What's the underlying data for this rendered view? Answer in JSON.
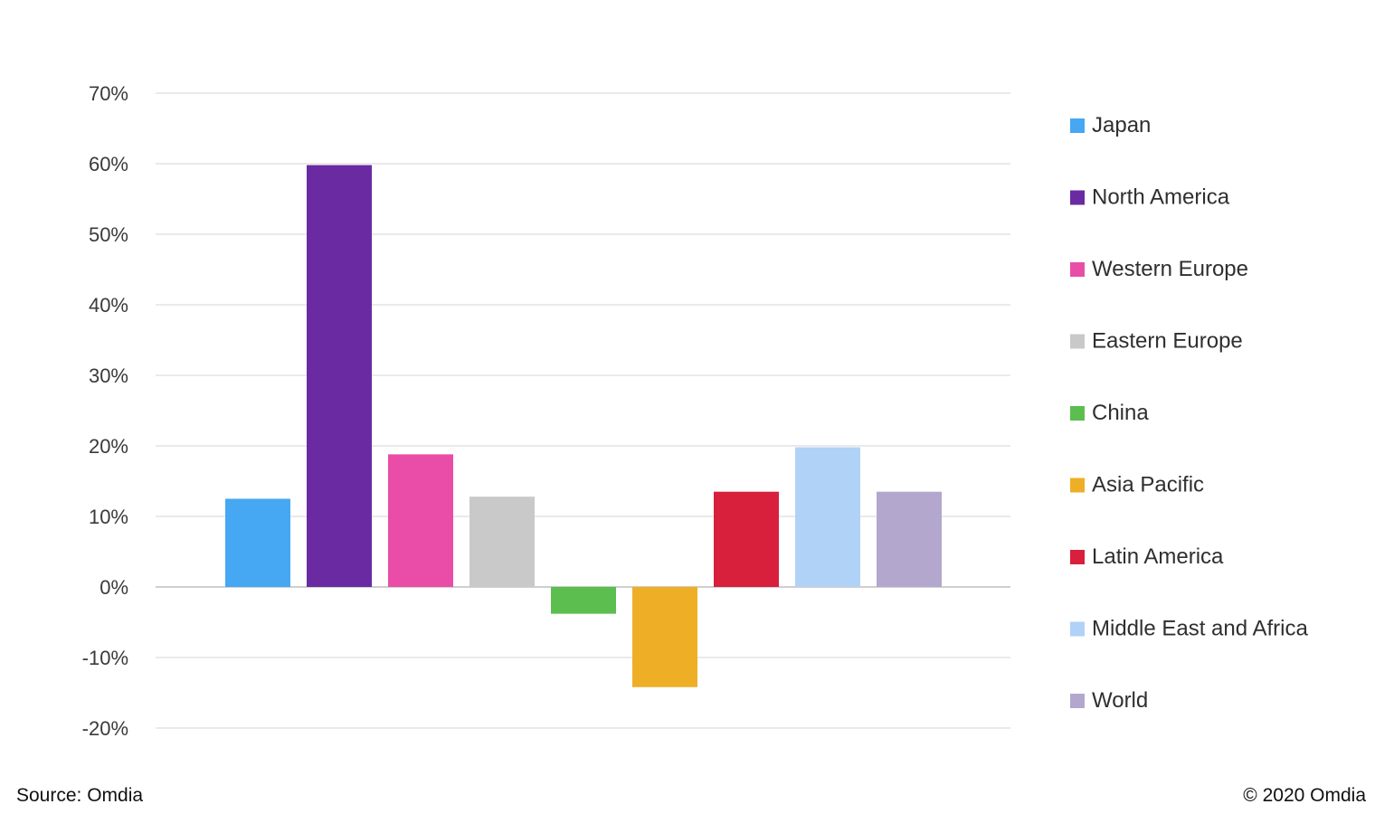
{
  "chart_data": {
    "type": "bar",
    "categories": [
      "Japan",
      "North America",
      "Western Europe",
      "Eastern Europe",
      "China",
      "Asia Pacific",
      "Latin America",
      "Middle East and Africa",
      "World"
    ],
    "values": [
      12.5,
      59.8,
      18.8,
      12.8,
      -3.8,
      -14.2,
      13.5,
      19.8,
      13.5
    ],
    "colors": [
      "#46A7F2",
      "#6A2AA1",
      "#E94DA8",
      "#C9C9C9",
      "#5BBE4E",
      "#EEAE26",
      "#D81F3B",
      "#B0D2F7",
      "#B4A7CE"
    ],
    "ylim": [
      -20,
      70
    ],
    "yticks": [
      70,
      60,
      50,
      40,
      30,
      20,
      10,
      0,
      -10,
      -20
    ],
    "ytick_labels": [
      "70%",
      "60%",
      "50%",
      "40%",
      "30%",
      "20%",
      "10%",
      "0%",
      "-10%",
      "-20%"
    ],
    "legend": [
      "Japan",
      "North America",
      "Western Europe",
      "Eastern Europe",
      "China",
      "Asia Pacific",
      "Latin America",
      "Middle East and Africa",
      "World"
    ],
    "legend_placement": "right",
    "grid": true,
    "title": "",
    "xlabel": "",
    "ylabel": ""
  },
  "footer": {
    "source": "Source: Omdia",
    "copyright": "© 2020 Omdia"
  }
}
